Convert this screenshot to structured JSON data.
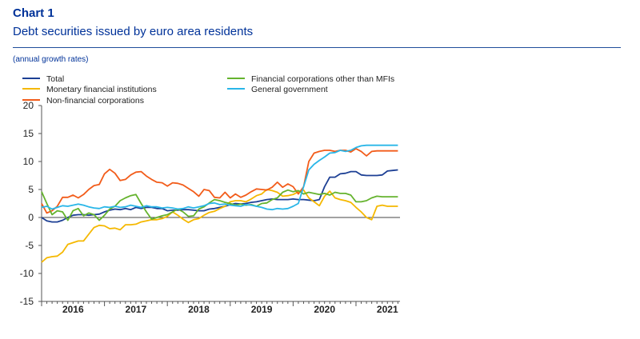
{
  "header": {
    "chart_label": "Chart 1",
    "title": "Debt securities issued by euro area residents",
    "subtitle": "(annual growth rates)"
  },
  "chart_data": {
    "type": "line",
    "title": "Debt securities issued by euro area residents",
    "subtitle": "(annual growth rates)",
    "ylim": [
      -15,
      20
    ],
    "yticks": [
      20,
      15,
      10,
      5,
      0,
      -5,
      -10,
      -15
    ],
    "xlim": [
      2015.5,
      2021.2
    ],
    "xticks": [
      {
        "label": "2016",
        "x": 2016.0
      },
      {
        "label": "2017",
        "x": 2017.0
      },
      {
        "label": "2018",
        "x": 2018.0
      },
      {
        "label": "2019",
        "x": 2019.0
      },
      {
        "label": "2020",
        "x": 2020.0
      },
      {
        "label": "2021",
        "x": 2021.0
      }
    ],
    "x": [
      2015.5,
      2015.583,
      2015.667,
      2015.75,
      2015.833,
      2015.917,
      2016.0,
      2016.083,
      2016.167,
      2016.25,
      2016.333,
      2016.417,
      2016.5,
      2016.583,
      2016.667,
      2016.75,
      2016.833,
      2016.917,
      2017.0,
      2017.083,
      2017.167,
      2017.25,
      2017.333,
      2017.417,
      2017.5,
      2017.583,
      2017.667,
      2017.75,
      2017.833,
      2017.917,
      2018.0,
      2018.083,
      2018.167,
      2018.25,
      2018.333,
      2018.417,
      2018.5,
      2018.583,
      2018.667,
      2018.75,
      2018.833,
      2018.917,
      2019.0,
      2019.083,
      2019.167,
      2019.25,
      2019.333,
      2019.417,
      2019.5,
      2019.583,
      2019.667,
      2019.75,
      2019.833,
      2019.917,
      2020.0,
      2020.083,
      2020.167,
      2020.25,
      2020.333,
      2020.417,
      2020.5,
      2020.583,
      2020.667,
      2020.75,
      2020.833,
      2020.917,
      2021.0,
      2021.083,
      2021.167
    ],
    "series": [
      {
        "name": "Total",
        "color": "#1c3f94",
        "values": [
          0.0,
          -0.6,
          -0.8,
          -0.8,
          -0.5,
          0.0,
          0.4,
          0.5,
          0.5,
          0.4,
          0.5,
          0.6,
          1.0,
          1.3,
          1.5,
          1.4,
          1.6,
          1.4,
          1.8,
          1.6,
          1.8,
          1.8,
          1.6,
          1.6,
          1.2,
          1.3,
          1.3,
          1.4,
          1.4,
          1.3,
          1.2,
          1.2,
          1.5,
          1.6,
          1.8,
          2.0,
          2.3,
          2.5,
          2.4,
          2.5,
          2.7,
          2.8,
          3.0,
          3.2,
          3.3,
          3.2,
          3.2,
          3.2,
          3.3,
          3.2,
          3.2,
          3.1,
          3.0,
          3.2,
          5.5,
          7.2,
          7.2,
          7.8,
          7.9,
          8.2,
          8.2,
          7.6,
          7.5,
          7.5,
          7.5,
          7.6,
          8.3,
          8.4,
          8.5
        ]
      },
      {
        "name": "Monetary financial institutions",
        "color": "#f5b800",
        "values": [
          -8.0,
          -7.2,
          -7.0,
          -6.9,
          -6.2,
          -4.8,
          -4.5,
          -4.2,
          -4.2,
          -3.0,
          -1.8,
          -1.4,
          -1.5,
          -2.0,
          -1.9,
          -2.2,
          -1.3,
          -1.3,
          -1.2,
          -0.8,
          -0.6,
          -0.4,
          -0.4,
          -0.2,
          0.2,
          1.0,
          0.4,
          -0.3,
          -0.9,
          -0.4,
          -0.2,
          0.4,
          0.9,
          1.1,
          1.6,
          2.0,
          2.8,
          3.0,
          3.0,
          2.8,
          3.3,
          3.9,
          4.2,
          5.0,
          4.8,
          4.5,
          3.8,
          3.9,
          4.1,
          4.6,
          4.9,
          3.5,
          2.8,
          2.1,
          3.8,
          4.7,
          3.5,
          3.2,
          3.0,
          2.7,
          1.8,
          1.0,
          0.0,
          -0.4,
          2.0,
          2.2,
          2.0,
          2.0,
          2.0
        ]
      },
      {
        "name": "Non-financial corporations",
        "color": "#f25c1a",
        "values": [
          2.5,
          0.8,
          1.2,
          2.0,
          3.6,
          3.6,
          4.0,
          3.5,
          4.1,
          5.0,
          5.7,
          5.9,
          7.8,
          8.6,
          7.9,
          6.6,
          6.8,
          7.6,
          8.1,
          8.2,
          7.4,
          6.8,
          6.3,
          6.2,
          5.6,
          6.2,
          6.1,
          5.8,
          5.2,
          4.6,
          3.8,
          5.0,
          4.8,
          3.6,
          3.5,
          4.5,
          3.5,
          4.2,
          3.6,
          4.0,
          4.6,
          5.1,
          5.0,
          4.9,
          5.4,
          6.3,
          5.4,
          6.0,
          5.5,
          4.2,
          5.5,
          10.0,
          11.5,
          11.8,
          12.0,
          12.0,
          11.8,
          12.0,
          12.0,
          11.7,
          12.3,
          11.8,
          11.0,
          11.8,
          11.9,
          11.9,
          11.9,
          11.9,
          11.9
        ]
      },
      {
        "name": "Financial corporations other than MFIs",
        "color": "#65b32e",
        "values": [
          4.6,
          2.5,
          0.5,
          1.2,
          1.0,
          -0.5,
          1.2,
          1.6,
          0.3,
          0.8,
          0.5,
          -0.5,
          0.4,
          1.5,
          2.0,
          3.0,
          3.5,
          3.9,
          4.1,
          2.5,
          1.0,
          -0.3,
          0.0,
          0.3,
          0.5,
          1.0,
          1.5,
          1.0,
          0.2,
          0.3,
          1.5,
          1.9,
          2.6,
          3.2,
          3.0,
          2.7,
          2.5,
          2.2,
          2.4,
          2.2,
          2.3,
          2.0,
          2.5,
          2.6,
          3.2,
          3.5,
          4.5,
          4.9,
          4.6,
          4.8,
          4.2,
          4.5,
          4.3,
          4.1,
          4.3,
          4.0,
          4.5,
          4.3,
          4.3,
          4.0,
          2.8,
          2.8,
          3.0,
          3.5,
          3.8,
          3.7,
          3.7,
          3.7,
          3.7
        ]
      },
      {
        "name": "General government",
        "color": "#29b6e8",
        "values": [
          1.8,
          2.0,
          1.5,
          1.8,
          2.1,
          2.0,
          2.2,
          2.4,
          2.2,
          1.9,
          1.7,
          1.6,
          1.9,
          1.8,
          2.0,
          1.8,
          1.9,
          2.2,
          2.0,
          1.8,
          2.1,
          1.9,
          1.9,
          1.7,
          1.8,
          1.7,
          1.5,
          1.6,
          1.9,
          1.7,
          1.9,
          2.1,
          2.5,
          2.6,
          2.3,
          2.4,
          2.2,
          2.1,
          2.0,
          2.3,
          2.2,
          2.0,
          1.8,
          1.5,
          1.4,
          1.6,
          1.5,
          1.6,
          2.0,
          2.5,
          5.5,
          8.5,
          9.5,
          10.2,
          10.8,
          11.5,
          11.6,
          12.0,
          11.8,
          12.0,
          12.5,
          12.8,
          12.9,
          12.9,
          12.9,
          12.9,
          12.9,
          12.9,
          12.9
        ]
      }
    ],
    "grid": false,
    "legend_position": "top"
  }
}
